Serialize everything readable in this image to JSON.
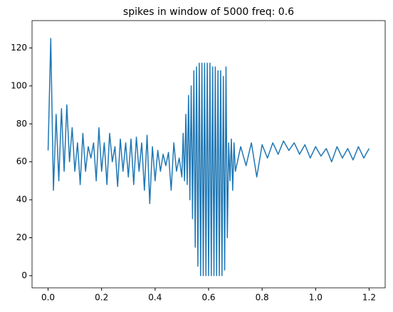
{
  "chart_data": {
    "type": "line",
    "title": "spikes in window of 5000 freq: 0.6",
    "x": [
      0,
      0.01,
      0.02,
      0.03,
      0.04,
      0.05,
      0.06,
      0.07,
      0.08,
      0.09,
      0.1,
      0.11,
      0.12,
      0.13,
      0.14,
      0.15,
      0.16,
      0.17,
      0.18,
      0.19,
      0.2,
      0.21,
      0.22,
      0.23,
      0.24,
      0.25,
      0.26,
      0.27,
      0.28,
      0.29,
      0.3,
      0.31,
      0.32,
      0.33,
      0.34,
      0.35,
      0.36,
      0.37,
      0.38,
      0.39,
      0.4,
      0.41,
      0.42,
      0.43,
      0.44,
      0.45,
      0.46,
      0.47,
      0.48,
      0.49,
      0.5,
      0.505,
      0.51,
      0.515,
      0.52,
      0.525,
      0.53,
      0.535,
      0.54,
      0.545,
      0.55,
      0.555,
      0.56,
      0.565,
      0.57,
      0.575,
      0.58,
      0.585,
      0.59,
      0.595,
      0.6,
      0.605,
      0.61,
      0.615,
      0.62,
      0.625,
      0.63,
      0.635,
      0.64,
      0.645,
      0.65,
      0.655,
      0.66,
      0.665,
      0.67,
      0.675,
      0.68,
      0.685,
      0.69,
      0.695,
      0.7,
      0.72,
      0.74,
      0.76,
      0.78,
      0.8,
      0.82,
      0.84,
      0.86,
      0.88,
      0.9,
      0.92,
      0.94,
      0.96,
      0.98,
      1.0,
      1.02,
      1.04,
      1.06,
      1.08,
      1.1,
      1.12,
      1.14,
      1.16,
      1.18,
      1.2
    ],
    "series": [
      {
        "color": "#1f77b4",
        "values": [
          66,
          125,
          45,
          85,
          50,
          88,
          55,
          90,
          60,
          78,
          55,
          70,
          48,
          75,
          55,
          68,
          62,
          70,
          50,
          78,
          55,
          70,
          48,
          75,
          60,
          68,
          47,
          72,
          55,
          70,
          52,
          72,
          48,
          73,
          55,
          70,
          45,
          74,
          38,
          68,
          50,
          66,
          55,
          64,
          58,
          65,
          45,
          70,
          55,
          62,
          52,
          75,
          50,
          85,
          48,
          95,
          40,
          100,
          30,
          108,
          15,
          110,
          5,
          112,
          0,
          112,
          0,
          112,
          0,
          112,
          0,
          112,
          0,
          110,
          0,
          110,
          0,
          108,
          0,
          108,
          0,
          105,
          3,
          110,
          20,
          70,
          50,
          72,
          45,
          70,
          55,
          68,
          58,
          70,
          52,
          69,
          62,
          70,
          64,
          71,
          66,
          70,
          64,
          69,
          62,
          68,
          63,
          67,
          60,
          68,
          62,
          67,
          61,
          68,
          62,
          67
        ]
      }
    ],
    "xlim": [
      -0.06,
      1.26
    ],
    "ylim": [
      -6.4,
      134.4
    ],
    "xticks": [
      {
        "value": 0,
        "label": "0.0"
      },
      0.2,
      0.4,
      0.6,
      0.8,
      {
        "value": 1,
        "label": "1.0"
      },
      1.2
    ],
    "yticks": [
      0,
      20,
      40,
      60,
      80,
      100,
      120
    ]
  }
}
